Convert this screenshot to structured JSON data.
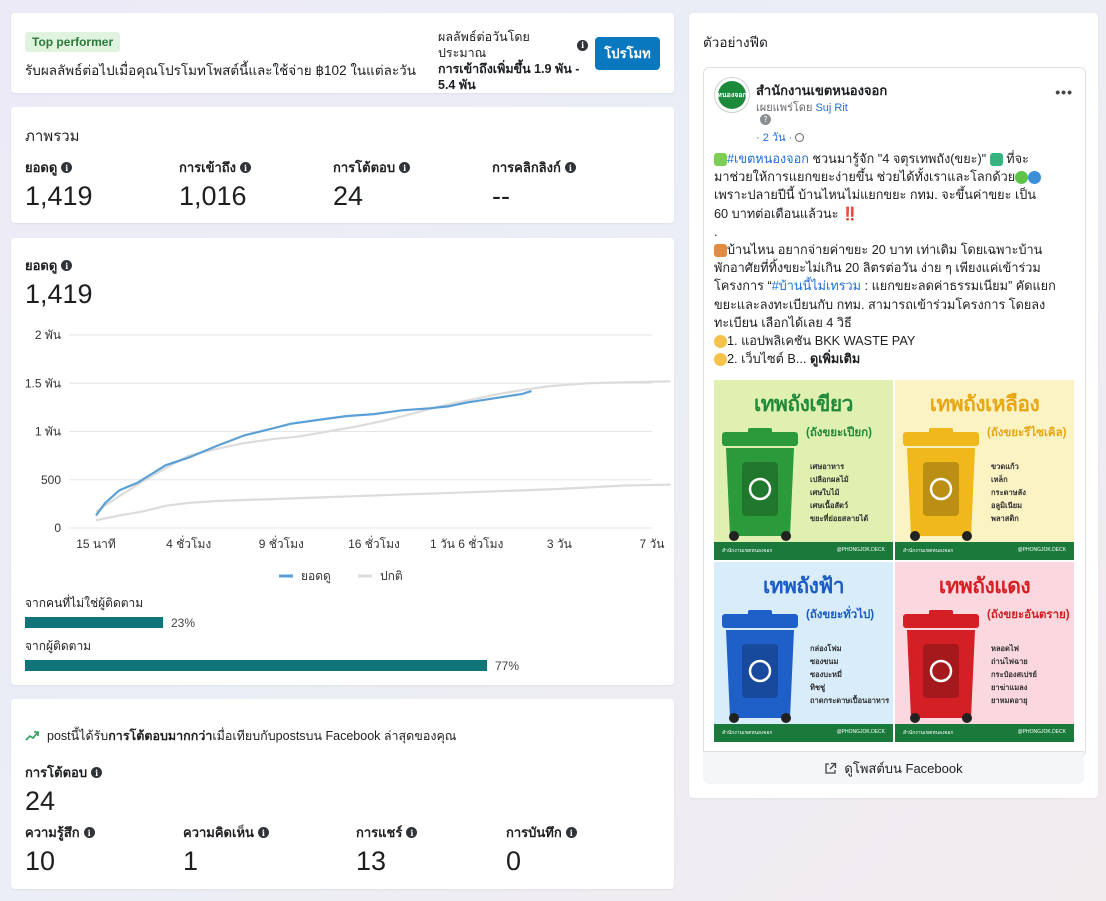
{
  "promo": {
    "badge": "Top performer",
    "text": "รับผลลัพธ์ต่อไปเมื่อคุณโปรโมทโพสต์นี้และใช้จ่าย ฿102 ในแต่ละวัน",
    "est_label": "ผลลัพธ์ต่อวันโดยประมาณ",
    "est_value": "การเข้าถึงเพิ่มขึ้น 1.9 พัน - 5.4 พัน",
    "button": "โปรโมท"
  },
  "overview": {
    "title": "ภาพรวม",
    "metrics": [
      {
        "label": "ยอดดู",
        "value": "1,419"
      },
      {
        "label": "การเข้าถึง",
        "value": "1,016"
      },
      {
        "label": "การโต้ตอบ",
        "value": "24"
      },
      {
        "label": "การคลิกลิงก์",
        "value": "--"
      }
    ]
  },
  "views": {
    "label": "ยอดดู",
    "value": "1,419",
    "non_followers_label": "จากคนที่ไม่ใช่ผู้ติดตาม",
    "non_followers_pct": "23%",
    "non_followers_fraction": 0.23,
    "followers_label": "จากผู้ติดตาม",
    "followers_pct": "77%",
    "followers_fraction": 0.77
  },
  "chart_data": {
    "type": "line",
    "y_ticks": [
      "0",
      "500",
      "1 พัน",
      "1.5 พัน",
      "2 พัน"
    ],
    "y_tick_values": [
      0,
      500,
      1000,
      1500,
      2000
    ],
    "ylim": [
      0,
      2000
    ],
    "x_ticks": [
      "15 นาที",
      "4 ชั่วโมง",
      "9 ชั่วโมง",
      "16 ชั่วโมง",
      "1 วัน 6 ชั่วโมง",
      "3 วัน",
      "7 วัน"
    ],
    "x_tick_positions": [
      0,
      1,
      2,
      3,
      4,
      5,
      6
    ],
    "legend": [
      "ยอดดู",
      "ปกติ"
    ],
    "legend_position": "bottom-center",
    "grid": true,
    "colors": {
      "views": "#5aa0d6",
      "normal": "#dcdcdc"
    },
    "series": [
      {
        "name": "ยอดดู",
        "x": [
          0,
          0.1,
          0.25,
          0.45,
          0.6,
          0.75,
          1.0,
          1.3,
          1.6,
          1.9,
          2.1,
          2.4,
          2.7,
          3.0,
          3.3,
          3.6,
          3.8,
          4.0,
          4.2,
          4.4,
          4.6,
          4.7
        ],
        "values": [
          130,
          260,
          390,
          470,
          560,
          650,
          730,
          850,
          960,
          1030,
          1080,
          1120,
          1160,
          1180,
          1220,
          1240,
          1260,
          1300,
          1330,
          1360,
          1390,
          1419
        ]
      },
      {
        "name": "ปกติ",
        "upper": [
          170,
          330,
          480,
          620,
          750,
          820,
          880,
          920,
          950,
          1000,
          1050,
          1110,
          1180,
          1260,
          1320,
          1380,
          1430,
          1470,
          1500,
          1510,
          1520
        ],
        "lower": [
          80,
          130,
          170,
          230,
          260,
          280,
          290,
          300,
          310,
          320,
          330,
          340,
          350,
          360,
          370,
          380,
          390,
          400,
          420,
          440,
          450
        ],
        "x": [
          0,
          0.25,
          0.5,
          0.75,
          1.0,
          1.3,
          1.6,
          1.9,
          2.2,
          2.5,
          2.8,
          3.1,
          3.4,
          3.7,
          4.0,
          4.3,
          4.6,
          4.9,
          5.3,
          5.7,
          6.2
        ]
      }
    ]
  },
  "interactions": {
    "trend_prefix": "postนี้ได้รับ",
    "trend_bold": "การโต้ตอบมากกว่า",
    "trend_suffix": "เมื่อเทียบกับpostsบน Facebook ล่าสุดของคุณ",
    "main_label": "การโต้ตอบ",
    "main_value": "24",
    "breakdown": [
      {
        "label": "ความรู้สึก",
        "value": "10"
      },
      {
        "label": "ความคิดเห็น",
        "value": "1"
      },
      {
        "label": "การแชร์",
        "value": "13"
      },
      {
        "label": "การบันทึก",
        "value": "0"
      }
    ],
    "trend_color": "#2e9d57"
  },
  "preview": {
    "title": "ตัวอย่างฟีด",
    "page_name": "สำนักงานเขตหนองจอก",
    "avatar_text": "หนองจอก",
    "shared_by_prefix": "เผยแพร่โดย",
    "shared_by_name": "Suj Rit",
    "time": "· 2 วัน ·",
    "more": "•••",
    "body": {
      "l1_hashtag": "#เขตหนองจอก",
      "l1_rest": " ชวนมารู้จัก \"4 จตุรเทพถัง(ขยะ)\"",
      "l1_end": " ที่จะ",
      "l2": "มาช่วยให้การแยกขยะง่ายขึ้น ช่วยได้ทั้งเราและโลกด้วย",
      "l3": "เพราะปลายปีนี้ บ้านไหนไม่แยกขยะ กทม. จะขึ้นค่าขยะ เป็น",
      "l4": "60 บาทต่อเดือนแล้วนะ ‼️",
      "l5": ".",
      "l6": "บ้านไหน อยากจ่ายค่าขยะ 20 บาท เท่าเดิม โดยเฉพาะบ้าน",
      "l7": "พักอาศัยที่ทิ้งขยะไม่เกิน 20 ลิตรต่อวัน ง่าย ๆ เพียงแค่เข้าร่วม",
      "l8_pre": "โครงการ “",
      "l8_hl": "#บ้านนี้ไม่เทรวม",
      "l8_post": " : แยกขยะลดค่าธรรมเนียม” คัดแยก",
      "l9": "ขยะและลงทะเบียนกับ กทม. สามารถเข้าร่วมโครงการ โดยลง",
      "l10": "ทะเบียน เลือกได้เลย 4 วิธี",
      "l11": "1. แอปพลิเคชัน BKK WASTE PAY",
      "l12": "2. เว็บไซต์ B...",
      "see_more": "ดูเพิ่มเติม"
    },
    "bins": [
      {
        "title": "เทพถังเขียว",
        "sub": "(ถังขยะเปียก)",
        "items": [
          "เศษอาหาร",
          "เปลือกผลไม้",
          "เศษใบไม้",
          "เศษเนื้อสัตว์",
          "ขยะที่ย่อยสลายได้"
        ],
        "bg": "#dff0b0",
        "bin": "#2a9a3a",
        "title_color": "#1f8a3a"
      },
      {
        "title": "เทพถังเหลือง",
        "sub": "(ถังขยะรีไซเคิล)",
        "items": [
          "ขวดแก้ว",
          "เหล็ก",
          "กระดาษลัง",
          "อลูมิเนียม",
          "พลาสติก"
        ],
        "bg": "#fbf3c4",
        "bin": "#f0b81a",
        "title_color": "#e8a615"
      },
      {
        "title": "เทพถังฟ้า",
        "sub": "(ถังขยะทั่วไป)",
        "items": [
          "กล่องโฟม",
          "ซองขนม",
          "ซองบะหมี่",
          "ทิชชู่",
          "ถาดกระดาษเปื้อนอาหาร"
        ],
        "bg": "#d8ecfa",
        "bin": "#1e5fc8",
        "title_color": "#1a5bc4"
      },
      {
        "title": "เทพถังแดง",
        "sub": "(ถังขยะอันตราย)",
        "items": [
          "หลอดไฟ",
          "ถ่านไฟฉาย",
          "กระป๋องสเปรย์",
          "ยาฆ่าแมลง",
          "ยาหมดอายุ"
        ],
        "bg": "#fbd8df",
        "bin": "#d41f25",
        "title_color": "#d41f25"
      }
    ],
    "bin_footer_left": "สำนักงานเขตหนองจอก",
    "bin_footer_right": "@PHONGJOK.DECK",
    "fb_link": "ดูโพสต์บน Facebook"
  }
}
